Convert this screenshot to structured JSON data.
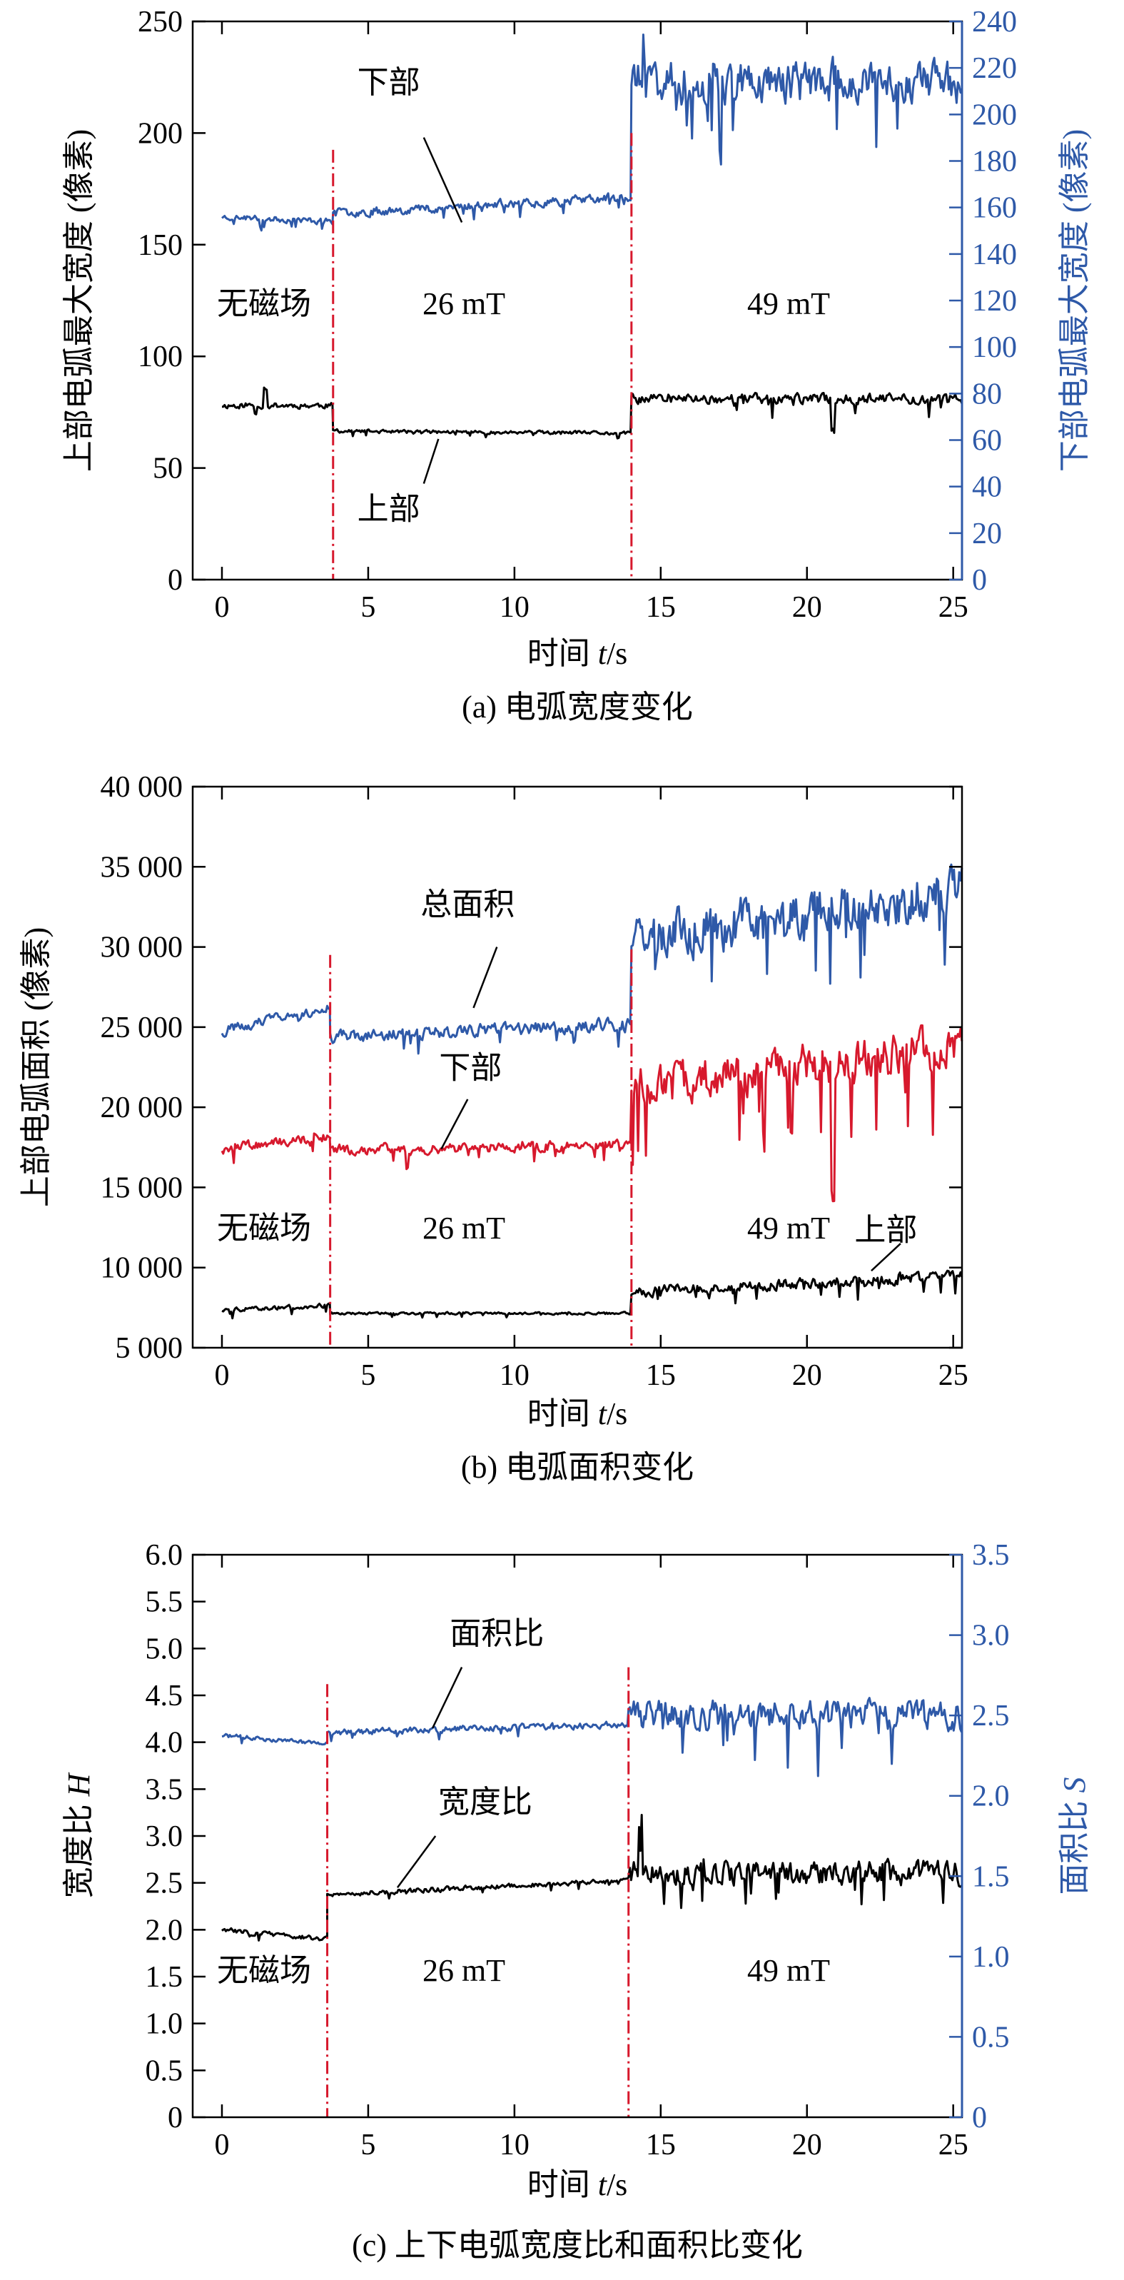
{
  "colors": {
    "black": "#000000",
    "blue": "#2e59a8",
    "red": "#d7192d",
    "marker": "#d7192d",
    "frame": "#000000"
  },
  "chart_data": [
    {
      "type": "line",
      "caption": "(a) 电弧宽度变化",
      "xlabel_prefix": "时间 ",
      "xlabel_var": "t",
      "xlabel_suffix": "/s",
      "xlim": [
        -1,
        25.3
      ],
      "xticks": [
        0,
        5,
        10,
        15,
        20,
        25
      ],
      "ylabel": "上部电弧最大宽度 (像素)",
      "ylim": [
        0,
        250
      ],
      "yticks": [
        "0",
        "50",
        "100",
        "150",
        "200",
        "250"
      ],
      "y2label": "下部电弧最大宽度 (像素)",
      "y2lim": [
        0,
        240
      ],
      "y2ticks": [
        "0",
        "20",
        "40",
        "60",
        "80",
        "100",
        "120",
        "140",
        "160",
        "180",
        "200",
        "220",
        "240"
      ],
      "vlines": [
        3.8,
        14.0
      ],
      "regions": [
        "无磁场",
        "26 mT",
        "49 mT"
      ],
      "series": [
        {
          "axis": "left",
          "color_key": "black",
          "seed": 11,
          "segments": [
            {
              "t0": 0,
              "t1": 3.8,
              "base": 78,
              "noise": 2,
              "trend": 0,
              "spikes": [
                {
                  "t": 1.5,
                  "v": 8
                }
              ]
            },
            {
              "t0": 3.8,
              "t1": 14.0,
              "base": 66,
              "noise": 1.2,
              "trend": -1
            },
            {
              "t0": 14.0,
              "t1": 25.3,
              "base": 81,
              "noise": 3.5,
              "trend": 0,
              "spikes": [
                {
                  "t": 20.9,
                  "v": -14
                }
              ]
            }
          ]
        },
        {
          "axis": "right",
          "color_key": "blue",
          "seed": 23,
          "segments": [
            {
              "t0": 0,
              "t1": 3.8,
              "base": 155,
              "noise": 2,
              "trend": -2
            },
            {
              "t0": 3.8,
              "t1": 14.0,
              "base": 161,
              "noise": 3,
              "trend": 7
            },
            {
              "t0": 14.0,
              "t1": 25.3,
              "base": 214,
              "noise": 14,
              "trend": 0,
              "spikes": [
                {
                  "t": 14.4,
                  "v": 12
                }
              ]
            }
          ]
        }
      ],
      "annotations": [
        {
          "label": "下部",
          "tx": 5.7,
          "ty": 218,
          "ax": 6.9,
          "ay": 198,
          "bx": 8.2,
          "by": 160,
          "axis": "left"
        },
        {
          "label": "上部",
          "tx": 5.7,
          "ty": 27,
          "ax": 6.9,
          "ay": 43,
          "bx": 7.4,
          "by": 63,
          "axis": "left"
        }
      ]
    },
    {
      "type": "line",
      "caption": "(b) 电弧面积变化",
      "xlabel_prefix": "时间 ",
      "xlabel_var": "t",
      "xlabel_suffix": "/s",
      "xlim": [
        -1,
        25.3
      ],
      "xticks": [
        0,
        5,
        10,
        15,
        20,
        25
      ],
      "ylabel": "上部电弧面积 (像素)",
      "ylim": [
        5000,
        40000
      ],
      "yticks": [
        "5 000",
        "10 000",
        "15 000",
        "20 000",
        "25 000",
        "30 000",
        "35 000",
        "40 000"
      ],
      "vlines": [
        3.7,
        14.0
      ],
      "regions": [
        "无磁场",
        "26 mT",
        "49 mT"
      ],
      "series": [
        {
          "axis": "left",
          "color_key": "blue",
          "seed": 31,
          "segments": [
            {
              "t0": 0,
              "t1": 3.7,
              "base": 25500,
              "noise": 500,
              "trend": 1500
            },
            {
              "t0": 3.7,
              "t1": 14.0,
              "base": 24800,
              "noise": 600,
              "trend": 800
            },
            {
              "t0": 14.0,
              "t1": 25.3,
              "base": 32000,
              "noise": 2300,
              "trend": 3000
            }
          ]
        },
        {
          "axis": "left",
          "color_key": "red",
          "seed": 47,
          "segments": [
            {
              "t0": 0,
              "t1": 3.7,
              "base": 17800,
              "noise": 450,
              "trend": 800
            },
            {
              "t0": 3.7,
              "t1": 14.0,
              "base": 17500,
              "noise": 500,
              "trend": 300
            },
            {
              "t0": 14.0,
              "t1": 25.3,
              "base": 22500,
              "noise": 2000,
              "trend": 2400,
              "spikes": [
                {
                  "t": 20.9,
                  "v": -7500
                }
              ]
            }
          ]
        },
        {
          "axis": "left",
          "color_key": "black",
          "seed": 59,
          "segments": [
            {
              "t0": 0,
              "t1": 3.7,
              "base": 7500,
              "noise": 200,
              "trend": 300
            },
            {
              "t0": 3.7,
              "t1": 14.0,
              "base": 7150,
              "noise": 120,
              "trend": 0
            },
            {
              "t0": 14.0,
              "t1": 25.3,
              "base": 9000,
              "noise": 500,
              "trend": 1000
            }
          ]
        }
      ],
      "annotations": [
        {
          "label": "总面积",
          "tx": 8.4,
          "ty": 32000,
          "ax": 9.4,
          "ay": 30000,
          "bx": 8.6,
          "by": 26200,
          "axis": "left"
        },
        {
          "label": "下部",
          "tx": 8.5,
          "ty": 21800,
          "ax": 8.4,
          "ay": 20500,
          "bx": 7.5,
          "by": 17400,
          "axis": "left"
        },
        {
          "label": "上部",
          "tx": 22.7,
          "ty": 11700,
          "ax": 23.2,
          "ay": 11500,
          "bx": 22.2,
          "by": 9800,
          "axis": "left"
        }
      ]
    },
    {
      "type": "line",
      "caption": "(c) 上下电弧宽度比和面积比变化",
      "xlabel_prefix": "时间 ",
      "xlabel_var": "t",
      "xlabel_suffix": "/s",
      "xlim": [
        -1,
        25.3
      ],
      "xticks": [
        0,
        5,
        10,
        15,
        20,
        25
      ],
      "ylabel_prefix": "宽度比 ",
      "ylabel_var": "H",
      "ylim": [
        0,
        6
      ],
      "yticks": [
        "0",
        "0.5",
        "1.0",
        "1.5",
        "2.0",
        "2.5",
        "3.0",
        "3.5",
        "4.0",
        "4.5",
        "5.0",
        "5.5",
        "6.0"
      ],
      "y2label_prefix": "面积比 ",
      "y2label_var": "S",
      "y2lim": [
        0,
        3.5
      ],
      "y2ticks": [
        "0",
        "0.5",
        "1.0",
        "1.5",
        "2.0",
        "2.5",
        "3.0",
        "3.5"
      ],
      "vlines": [
        3.6,
        13.9
      ],
      "regions": [
        "无磁场",
        "26 mT",
        "49 mT"
      ],
      "series": [
        {
          "axis": "right",
          "color_key": "blue",
          "seed": 71,
          "segments": [
            {
              "t0": 0,
              "t1": 3.6,
              "base": 2.35,
              "noise": 0.02,
              "trend": -0.05
            },
            {
              "t0": 3.6,
              "t1": 13.9,
              "base": 2.42,
              "noise": 0.03,
              "trend": 0.05
            },
            {
              "t0": 13.9,
              "t1": 25.3,
              "base": 2.5,
              "noise": 0.14,
              "trend": 0
            }
          ]
        },
        {
          "axis": "left",
          "color_key": "black",
          "seed": 83,
          "segments": [
            {
              "t0": 0,
              "t1": 3.6,
              "base": 1.95,
              "noise": 0.04,
              "trend": -0.1
            },
            {
              "t0": 3.6,
              "t1": 13.9,
              "base": 2.45,
              "noise": 0.04,
              "trend": 0.15
            },
            {
              "t0": 13.9,
              "t1": 25.3,
              "base": 2.6,
              "noise": 0.2,
              "trend": 0,
              "spikes": [
                {
                  "t": 14.3,
                  "v": 0.6
                }
              ]
            }
          ]
        }
      ],
      "annotations": [
        {
          "label": "面积比",
          "tx": 9.4,
          "ty": 5.05,
          "ax": 8.2,
          "ay": 4.8,
          "bx": 7.2,
          "by": 4.15,
          "axis": "left"
        },
        {
          "label": "宽度比",
          "tx": 9.0,
          "ty": 3.25,
          "ax": 7.3,
          "ay": 3.0,
          "bx": 6.0,
          "by": 2.45,
          "axis": "left"
        }
      ]
    }
  ]
}
